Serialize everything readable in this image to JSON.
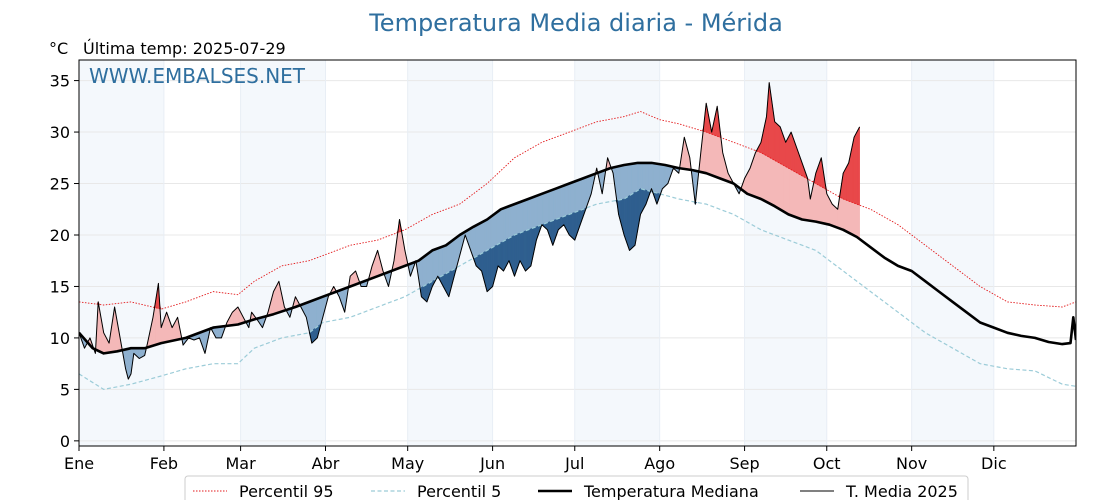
{
  "chart_data": {
    "type": "line",
    "title": "Temperatura Media diaria - Mérida",
    "unit_label": "°C",
    "last_temp_label": "Última temp: 2025-07-29",
    "watermark": "WWW.EMBALSES.NET",
    "ylim": [
      -0.5,
      37
    ],
    "yticks": [
      0,
      5,
      10,
      15,
      20,
      25,
      30,
      35
    ],
    "months": [
      "Ene",
      "Feb",
      "Mar",
      "Abr",
      "May",
      "Jun",
      "Jul",
      "Ago",
      "Sep",
      "Oct",
      "Nov",
      "Dic"
    ],
    "grid": true,
    "legend_position": "bottom-center",
    "series": [
      {
        "name": "Percentil 95",
        "color": "#e31a1c",
        "style": "dotted",
        "points": [
          [
            1,
            13.5
          ],
          [
            10,
            13.2
          ],
          [
            20,
            13.5
          ],
          [
            31,
            12.8
          ],
          [
            40,
            13.5
          ],
          [
            50,
            14.5
          ],
          [
            59,
            14.2
          ],
          [
            65,
            15.5
          ],
          [
            75,
            17
          ],
          [
            85,
            17.5
          ],
          [
            90,
            18
          ],
          [
            100,
            19
          ],
          [
            110,
            19.5
          ],
          [
            120,
            20.5
          ],
          [
            130,
            22
          ],
          [
            140,
            23
          ],
          [
            150,
            25
          ],
          [
            160,
            27.5
          ],
          [
            170,
            29
          ],
          [
            180,
            30
          ],
          [
            190,
            31
          ],
          [
            200,
            31.5
          ],
          [
            206,
            32
          ],
          [
            213,
            31.2
          ],
          [
            220,
            30.8
          ],
          [
            230,
            30
          ],
          [
            240,
            29
          ],
          [
            250,
            28
          ],
          [
            260,
            26.5
          ],
          [
            270,
            25
          ],
          [
            280,
            23.5
          ],
          [
            290,
            22.5
          ],
          [
            300,
            21
          ],
          [
            310,
            19
          ],
          [
            320,
            17
          ],
          [
            330,
            15
          ],
          [
            340,
            13.5
          ],
          [
            350,
            13.2
          ],
          [
            360,
            13
          ],
          [
            365,
            13.5
          ]
        ]
      },
      {
        "name": "Percentil 5",
        "color": "#9cccd8",
        "style": "dashed",
        "points": [
          [
            1,
            6.5
          ],
          [
            10,
            5
          ],
          [
            20,
            5.5
          ],
          [
            31,
            6.3
          ],
          [
            40,
            7
          ],
          [
            50,
            7.5
          ],
          [
            59,
            7.5
          ],
          [
            65,
            9
          ],
          [
            75,
            10
          ],
          [
            85,
            10.5
          ],
          [
            90,
            11.5
          ],
          [
            100,
            12
          ],
          [
            110,
            13
          ],
          [
            120,
            14
          ],
          [
            130,
            15.5
          ],
          [
            140,
            17
          ],
          [
            150,
            18.5
          ],
          [
            160,
            20
          ],
          [
            170,
            21
          ],
          [
            180,
            22
          ],
          [
            190,
            23
          ],
          [
            200,
            23.5
          ],
          [
            206,
            24.5
          ],
          [
            213,
            24
          ],
          [
            220,
            23.5
          ],
          [
            230,
            23
          ],
          [
            240,
            22
          ],
          [
            250,
            20.5
          ],
          [
            260,
            19.5
          ],
          [
            270,
            18.5
          ],
          [
            280,
            16.5
          ],
          [
            290,
            14.5
          ],
          [
            300,
            12.5
          ],
          [
            310,
            10.5
          ],
          [
            320,
            9
          ],
          [
            330,
            7.5
          ],
          [
            340,
            7
          ],
          [
            350,
            6.8
          ],
          [
            360,
            5.5
          ],
          [
            365,
            5.3
          ]
        ]
      },
      {
        "name": "Temperatura Mediana",
        "color": "#000000",
        "style": "solid-thick",
        "points": [
          [
            1,
            10.5
          ],
          [
            6,
            9
          ],
          [
            10,
            8.5
          ],
          [
            15,
            8.7
          ],
          [
            20,
            9
          ],
          [
            25,
            9
          ],
          [
            31,
            9.5
          ],
          [
            40,
            10
          ],
          [
            50,
            11
          ],
          [
            59,
            11.3
          ],
          [
            65,
            11.8
          ],
          [
            72,
            12.3
          ],
          [
            80,
            13
          ],
          [
            85,
            13.5
          ],
          [
            90,
            14
          ],
          [
            95,
            14.5
          ],
          [
            100,
            15
          ],
          [
            110,
            16
          ],
          [
            120,
            17
          ],
          [
            125,
            17.5
          ],
          [
            130,
            18.5
          ],
          [
            135,
            19
          ],
          [
            140,
            20
          ],
          [
            145,
            20.8
          ],
          [
            150,
            21.5
          ],
          [
            155,
            22.5
          ],
          [
            160,
            23
          ],
          [
            165,
            23.5
          ],
          [
            170,
            24
          ],
          [
            175,
            24.5
          ],
          [
            180,
            25
          ],
          [
            185,
            25.5
          ],
          [
            190,
            26
          ],
          [
            195,
            26.5
          ],
          [
            200,
            26.8
          ],
          [
            205,
            27
          ],
          [
            210,
            27
          ],
          [
            215,
            26.8
          ],
          [
            220,
            26.5
          ],
          [
            225,
            26.3
          ],
          [
            230,
            26
          ],
          [
            235,
            25.5
          ],
          [
            240,
            25
          ],
          [
            245,
            24
          ],
          [
            250,
            23.5
          ],
          [
            255,
            22.8
          ],
          [
            260,
            22
          ],
          [
            265,
            21.5
          ],
          [
            270,
            21.3
          ],
          [
            275,
            21
          ],
          [
            280,
            20.5
          ],
          [
            285,
            19.8
          ],
          [
            290,
            18.8
          ],
          [
            295,
            17.8
          ],
          [
            300,
            17
          ],
          [
            305,
            16.5
          ],
          [
            310,
            15.5
          ],
          [
            315,
            14.5
          ],
          [
            320,
            13.5
          ],
          [
            325,
            12.5
          ],
          [
            330,
            11.5
          ],
          [
            335,
            11
          ],
          [
            340,
            10.5
          ],
          [
            345,
            10.2
          ],
          [
            350,
            10
          ],
          [
            355,
            9.6
          ],
          [
            360,
            9.4
          ],
          [
            363,
            9.5
          ],
          [
            364,
            12
          ],
          [
            365,
            9.8
          ]
        ]
      },
      {
        "name": "T. Media 2025",
        "color": "#000000",
        "style": "solid-thin",
        "points": [
          [
            1,
            10.5
          ],
          [
            3,
            9
          ],
          [
            5,
            10
          ],
          [
            7,
            8.5
          ],
          [
            8,
            13.5
          ],
          [
            10,
            10.5
          ],
          [
            12,
            9.5
          ],
          [
            14,
            13
          ],
          [
            16,
            10
          ],
          [
            18,
            7
          ],
          [
            19,
            6
          ],
          [
            20,
            6.5
          ],
          [
            21,
            8.5
          ],
          [
            23,
            8
          ],
          [
            25,
            8.3
          ],
          [
            26,
            9.5
          ],
          [
            28,
            12
          ],
          [
            30,
            15.3
          ],
          [
            31,
            11
          ],
          [
            33,
            12.5
          ],
          [
            35,
            11
          ],
          [
            37,
            12
          ],
          [
            39,
            9.3
          ],
          [
            41,
            10
          ],
          [
            43,
            9.8
          ],
          [
            45,
            10
          ],
          [
            47,
            8.5
          ],
          [
            49,
            11
          ],
          [
            51,
            10
          ],
          [
            53,
            10
          ],
          [
            55,
            11.5
          ],
          [
            57,
            12.5
          ],
          [
            59,
            13
          ],
          [
            61,
            12
          ],
          [
            63,
            11
          ],
          [
            64,
            12.5
          ],
          [
            66,
            11.8
          ],
          [
            68,
            11
          ],
          [
            70,
            12.5
          ],
          [
            72,
            14.5
          ],
          [
            74,
            15.5
          ],
          [
            76,
            13
          ],
          [
            78,
            12
          ],
          [
            80,
            14
          ],
          [
            82,
            13
          ],
          [
            84,
            12
          ],
          [
            86,
            9.5
          ],
          [
            88,
            10
          ],
          [
            90,
            12
          ],
          [
            92,
            14
          ],
          [
            94,
            15
          ],
          [
            96,
            14
          ],
          [
            98,
            12.5
          ],
          [
            100,
            16
          ],
          [
            102,
            16.5
          ],
          [
            104,
            15
          ],
          [
            106,
            15
          ],
          [
            108,
            17
          ],
          [
            110,
            18.5
          ],
          [
            112,
            16.5
          ],
          [
            114,
            15
          ],
          [
            116,
            17.5
          ],
          [
            118,
            21.5
          ],
          [
            120,
            18.5
          ],
          [
            122,
            16
          ],
          [
            124,
            17.5
          ],
          [
            126,
            14
          ],
          [
            128,
            13.5
          ],
          [
            130,
            15
          ],
          [
            132,
            16
          ],
          [
            134,
            15
          ],
          [
            136,
            14
          ],
          [
            138,
            16
          ],
          [
            140,
            18
          ],
          [
            142,
            20
          ],
          [
            144,
            18.5
          ],
          [
            146,
            17
          ],
          [
            148,
            16.5
          ],
          [
            150,
            14.5
          ],
          [
            152,
            15
          ],
          [
            154,
            17
          ],
          [
            156,
            16.5
          ],
          [
            158,
            17.5
          ],
          [
            160,
            16
          ],
          [
            162,
            17.5
          ],
          [
            164,
            16.5
          ],
          [
            166,
            17
          ],
          [
            168,
            19.5
          ],
          [
            170,
            21
          ],
          [
            172,
            20.5
          ],
          [
            174,
            19
          ],
          [
            176,
            20.5
          ],
          [
            178,
            21
          ],
          [
            180,
            20
          ],
          [
            182,
            19.5
          ],
          [
            184,
            21
          ],
          [
            186,
            22.5
          ],
          [
            188,
            24
          ],
          [
            190,
            26.5
          ],
          [
            192,
            24
          ],
          [
            194,
            27.5
          ],
          [
            196,
            26
          ],
          [
            198,
            22
          ],
          [
            200,
            20
          ],
          [
            202,
            18.5
          ],
          [
            204,
            19
          ],
          [
            206,
            22
          ],
          [
            208,
            23
          ],
          [
            210,
            24.5
          ],
          [
            212,
            23
          ],
          [
            214,
            24.5
          ],
          [
            216,
            25
          ],
          [
            218,
            26.5
          ],
          [
            220,
            26
          ],
          [
            222,
            29.5
          ],
          [
            224,
            27.5
          ],
          [
            226,
            23
          ],
          [
            228,
            28
          ],
          [
            230,
            32.8
          ],
          [
            232,
            30
          ],
          [
            234,
            32.5
          ],
          [
            236,
            28
          ],
          [
            238,
            26
          ],
          [
            240,
            25
          ],
          [
            242,
            24
          ],
          [
            244,
            25.5
          ],
          [
            246,
            26.5
          ],
          [
            248,
            28
          ],
          [
            250,
            29
          ],
          [
            252,
            31.5
          ],
          [
            253,
            34.8
          ],
          [
            255,
            31
          ],
          [
            257,
            30.5
          ],
          [
            259,
            29
          ],
          [
            261,
            30
          ],
          [
            263,
            28.5
          ],
          [
            265,
            27
          ],
          [
            267,
            25.5
          ],
          [
            268,
            23.5
          ],
          [
            270,
            26
          ],
          [
            272,
            27.5
          ],
          [
            274,
            24
          ],
          [
            276,
            23
          ],
          [
            278,
            22.5
          ],
          [
            280,
            26
          ],
          [
            282,
            27
          ],
          [
            284,
            29.5
          ],
          [
            286,
            30.5
          ]
        ]
      }
    ]
  }
}
